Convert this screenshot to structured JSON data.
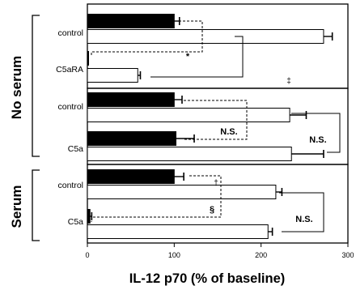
{
  "chart_data": {
    "type": "bar",
    "orientation": "horizontal",
    "xlabel": "IL-12 p70 (% of baseline)",
    "xlim": [
      0,
      300
    ],
    "xticks": [
      0,
      100,
      200,
      300
    ],
    "series_fill": {
      "black": "#000000",
      "white": "#ffffff"
    },
    "groups": [
      {
        "name": "No serum",
        "bars": [
          {
            "category": "control",
            "fill": "black",
            "value": 100,
            "error": 6
          },
          {
            "category": "control",
            "fill": "white",
            "value": 272,
            "error": 10
          },
          {
            "category": "C5aRA",
            "fill": "black",
            "value": 1,
            "error": 0
          },
          {
            "category": "C5aRA",
            "fill": "white",
            "value": 58,
            "error": 3
          }
        ]
      },
      {
        "name": "No serum",
        "bars": [
          {
            "category": "control",
            "fill": "black",
            "value": 100,
            "error": 9
          },
          {
            "category": "control",
            "fill": "white",
            "value": 233,
            "error": 19
          },
          {
            "category": "C5a",
            "fill": "black",
            "value": 102,
            "error": 21
          },
          {
            "category": "C5a",
            "fill": "white",
            "value": 235,
            "error": 37
          }
        ]
      },
      {
        "name": "Serum",
        "bars": [
          {
            "category": "control",
            "fill": "black",
            "value": 100,
            "error": 11
          },
          {
            "category": "control",
            "fill": "white",
            "value": 217,
            "error": 7
          },
          {
            "category": "C5a",
            "fill": "black",
            "value": 3,
            "error": 2
          },
          {
            "category": "C5a",
            "fill": "white",
            "value": 208,
            "error": 5
          }
        ]
      }
    ],
    "annotations": [
      "*",
      "‡",
      "N.S.",
      "N.S.",
      "†",
      "§",
      "N.S."
    ]
  }
}
